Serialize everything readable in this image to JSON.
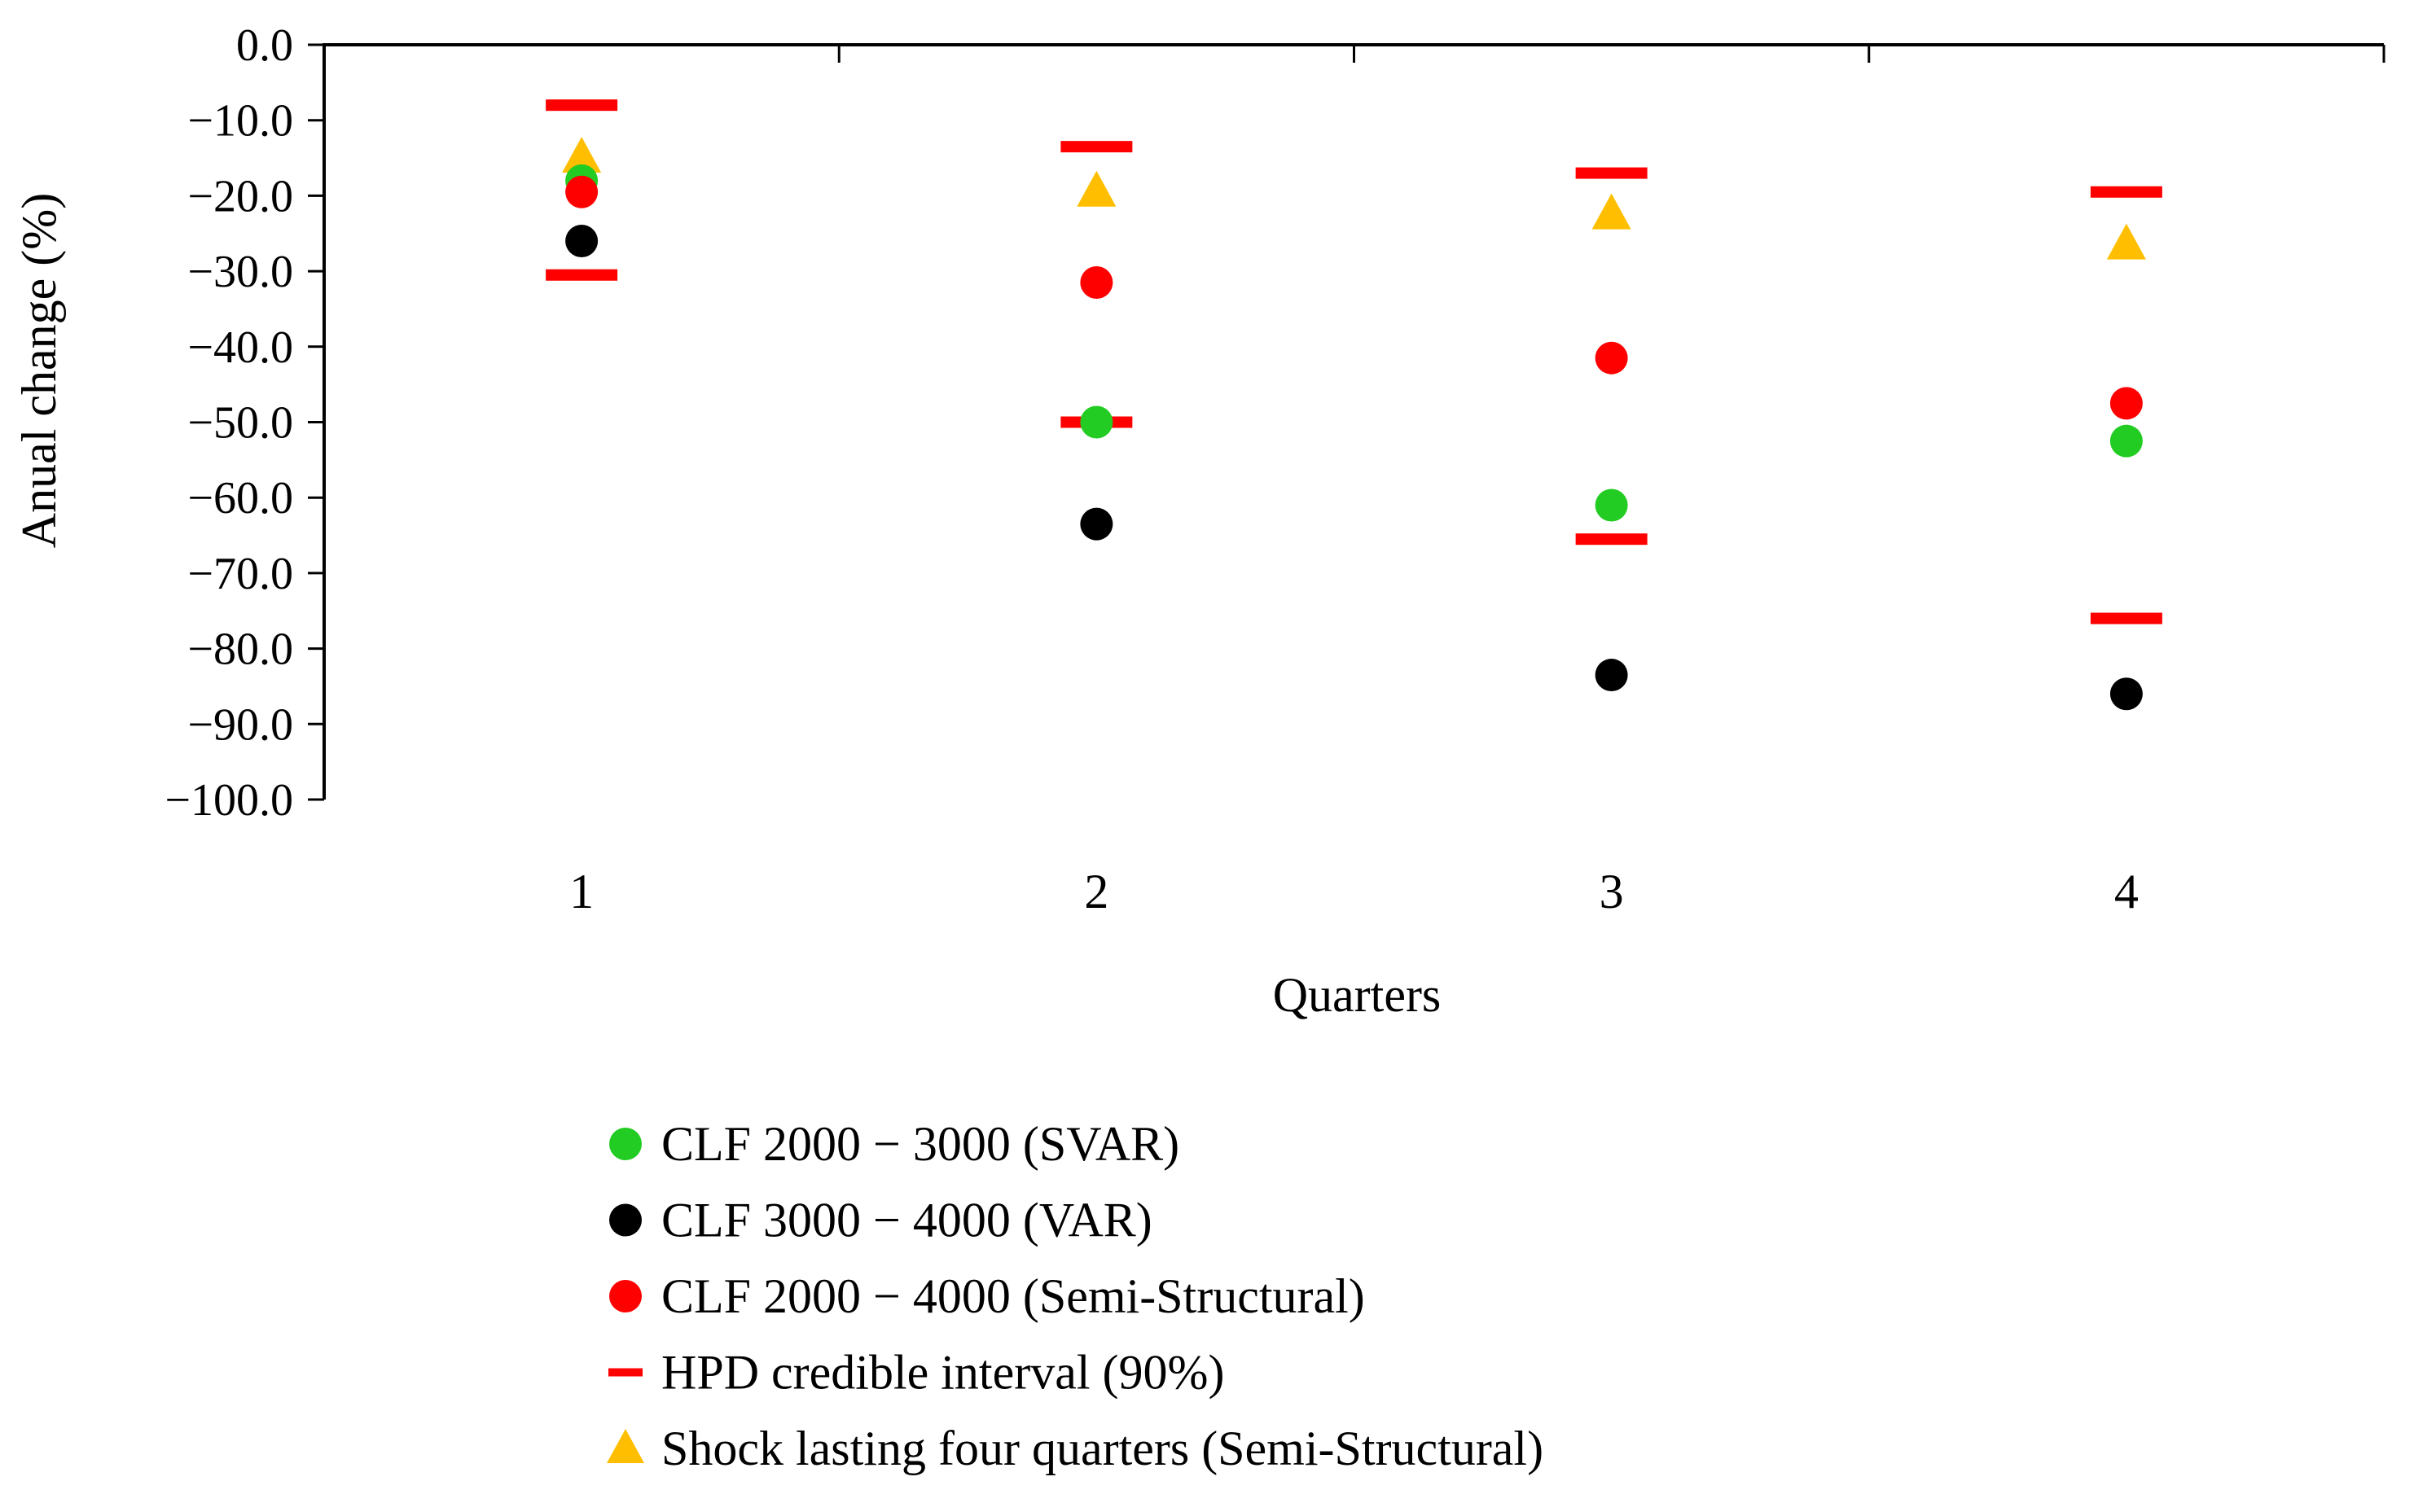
{
  "chart_data": {
    "type": "scatter",
    "title": "",
    "xlabel": "Quarters",
    "ylabel": "Anual change (%)",
    "categories": [
      "1",
      "2",
      "3",
      "4"
    ],
    "ylim": [
      -100,
      0
    ],
    "ytick_step": 10,
    "ytick_labels": [
      "0.0",
      "−10.0",
      "−20.0",
      "−30.0",
      "−40.0",
      "−50.0",
      "−60.0",
      "−70.0",
      "−80.0",
      "−90.0",
      "−100.0"
    ],
    "grid": false,
    "legend_position": "bottom",
    "series": [
      {
        "name": "CLF 2000 − 3000 (SVAR)",
        "marker": "circle",
        "color": "#22cc22",
        "values": [
          -18.0,
          -50.0,
          -61.0,
          -52.5
        ]
      },
      {
        "name": "CLF 3000 − 4000 (VAR)",
        "marker": "circle",
        "color": "#000000",
        "values": [
          -26.0,
          -63.5,
          -83.5,
          -86.0
        ]
      },
      {
        "name": "CLF 2000 − 4000 (Semi-Structural)",
        "marker": "circle",
        "color": "#ff0000",
        "values": [
          -19.5,
          -31.5,
          -41.5,
          -47.5
        ]
      },
      {
        "name": "HPD credible interval (90%)",
        "marker": "dash",
        "color": "#ff0000",
        "upper": [
          -8.0,
          -13.5,
          -17.0,
          -19.5
        ],
        "lower": [
          -30.5,
          -50.0,
          -65.5,
          -76.0
        ]
      },
      {
        "name": "Shock lasting four quarters (Semi-Structural)",
        "marker": "triangle",
        "color": "#ffbf00",
        "values": [
          -15.0,
          -19.5,
          -22.5,
          -26.5
        ]
      }
    ]
  }
}
